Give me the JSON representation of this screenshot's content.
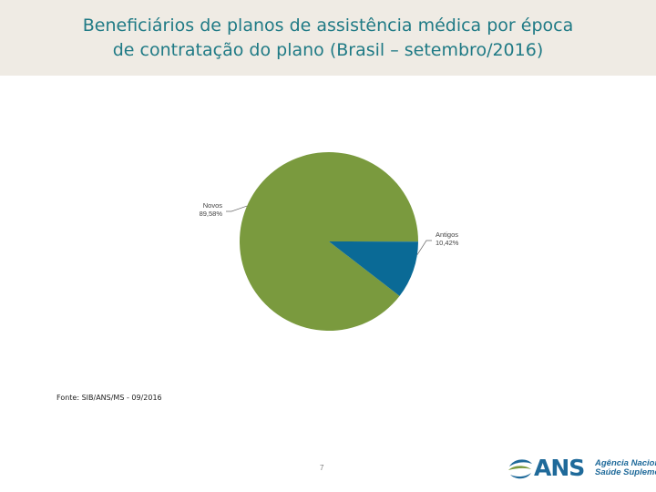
{
  "header": {
    "title_line1": "Beneficiários de planos de assistência médica por época",
    "title_line2": "de contratação do plano (Brasil – setembro/2016)"
  },
  "chart_data": {
    "type": "pie",
    "title": "Beneficiários de planos de assistência médica por época de contratação do plano (Brasil – setembro/2016)",
    "slices": [
      {
        "name": "Novos",
        "value": 89.58,
        "label": "89,58%",
        "color": "#7a9a3e"
      },
      {
        "name": "Antigos",
        "value": 10.42,
        "label": "10,42%",
        "color": "#0a6a96"
      }
    ],
    "legend": "none"
  },
  "footer": {
    "source": "Fonte: SIB/ANS/MS - 09/2016",
    "page_number": "7",
    "logo_abbr": "ANS",
    "logo_line1": "Agência Nacional de",
    "logo_line2": "Saúde Suplementar"
  }
}
